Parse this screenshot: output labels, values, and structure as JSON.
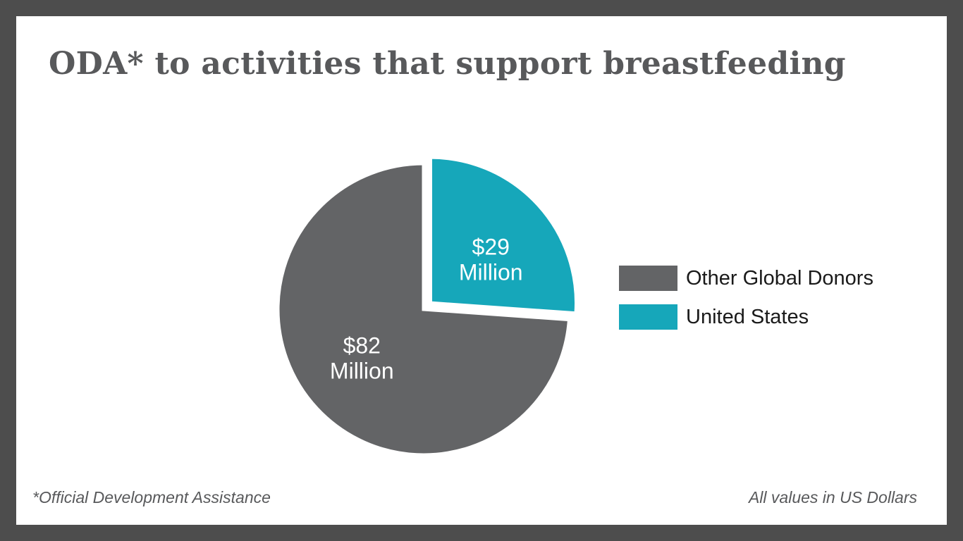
{
  "title": "ODA* to activities that support breastfeeding",
  "footnote_left": "*Official Development Assistance",
  "footnote_right": "All values in US Dollars",
  "colors": {
    "other_global_donors": "#636466",
    "united_states": "#16a7ba"
  },
  "chart_data": {
    "type": "pie",
    "title": "ODA* to activities that support breastfeeding",
    "slices": [
      {
        "name": "United States",
        "value": 29,
        "label_line1": "$29",
        "label_line2": "Million",
        "color": "#16a7ba",
        "exploded": true
      },
      {
        "name": "Other Global Donors",
        "value": 82,
        "label_line1": "$82",
        "label_line2": "Million",
        "color": "#636466",
        "exploded": false
      }
    ],
    "legend": {
      "placement": "right",
      "entries": [
        "Other Global Donors",
        "United States"
      ]
    }
  }
}
